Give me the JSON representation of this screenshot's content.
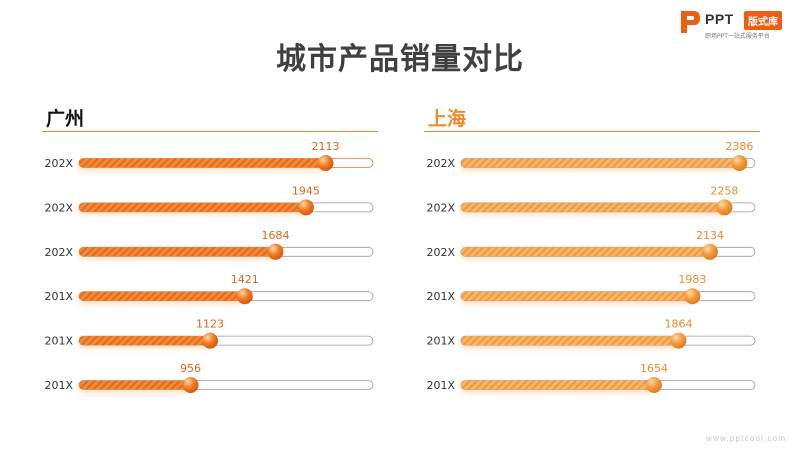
{
  "logo": {
    "ppt": "PPT",
    "badge": "版式库",
    "tagline": "职场PPT一站式服务平台"
  },
  "title": "城市产品销量对比",
  "watermark": "www.pptcool.com",
  "colors": {
    "orange_dark": "#ec6a1a",
    "orange_light": "#f5a24a",
    "text": "#404040"
  },
  "chart_data": [
    {
      "type": "bar",
      "title": "广州",
      "categories": [
        "202X",
        "202X",
        "202X",
        "201X",
        "201X",
        "201X"
      ],
      "values": [
        2113,
        1945,
        1684,
        1421,
        1123,
        956
      ],
      "xlim": [
        0,
        2520
      ],
      "style": "dark"
    },
    {
      "type": "bar",
      "title": "上海",
      "categories": [
        "202X",
        "202X",
        "202X",
        "201X",
        "201X",
        "201X"
      ],
      "values": [
        2386,
        2258,
        2134,
        1983,
        1864,
        1654
      ],
      "xlim": [
        0,
        2520
      ],
      "style": "light"
    }
  ]
}
